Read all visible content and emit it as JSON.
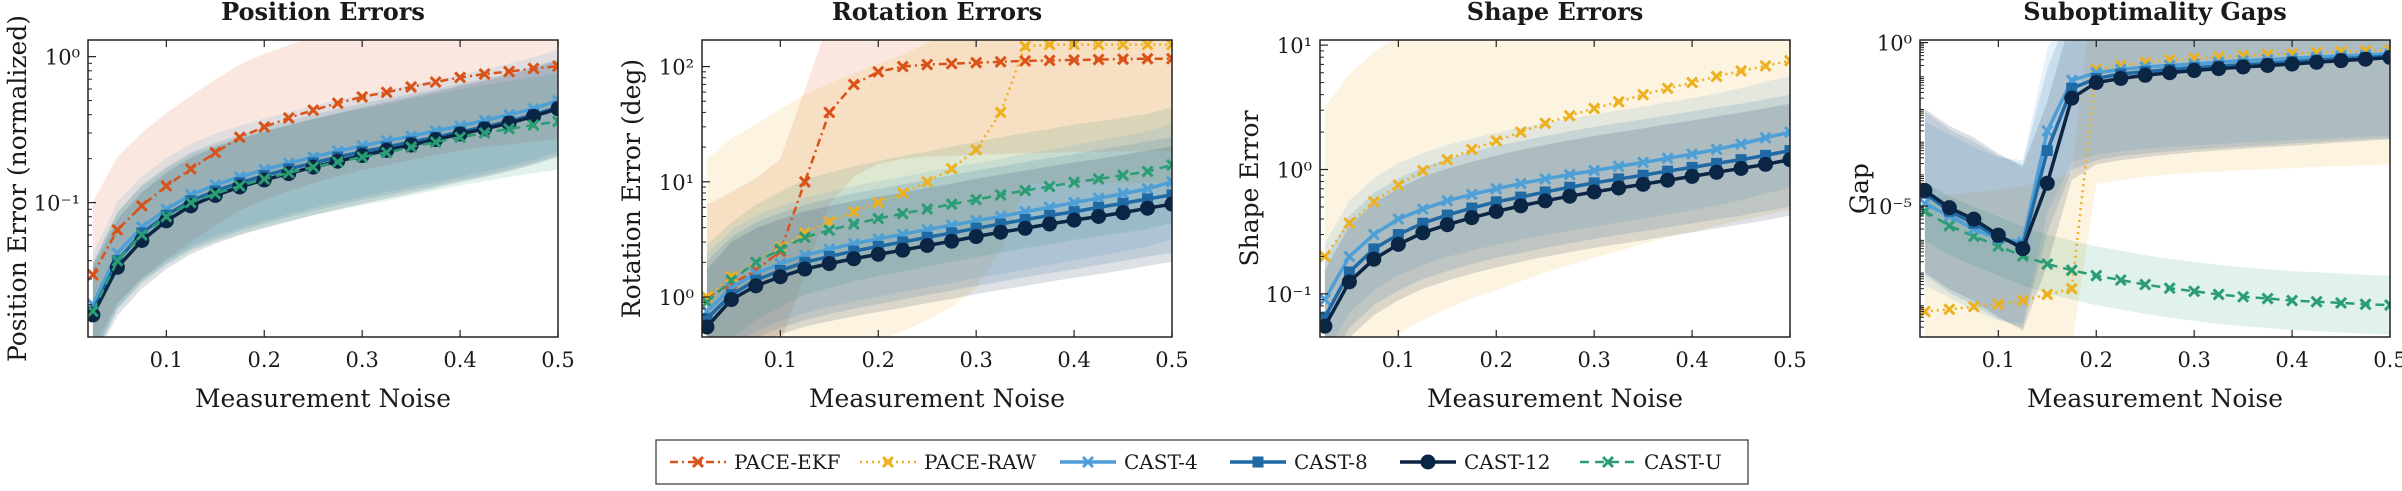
{
  "legend": [
    {
      "name": "PACE-EKF",
      "color": "#d95319",
      "dash": "8,4,2,4",
      "marker": "x",
      "width": 2.5
    },
    {
      "name": "PACE-RAW",
      "color": "#edb120",
      "dash": "2,4",
      "marker": "x",
      "width": 2.5
    },
    {
      "name": "CAST-4",
      "color": "#4d9fd6",
      "dash": "",
      "marker": "x",
      "width": 3.5
    },
    {
      "name": "CAST-8",
      "color": "#1f6aa5",
      "dash": "",
      "marker": "s",
      "width": 3.5
    },
    {
      "name": "CAST-12",
      "color": "#0b2545",
      "dash": "",
      "marker": "o",
      "width": 3.5
    },
    {
      "name": "CAST-U",
      "color": "#2a9d74",
      "dash": "9,6",
      "marker": "x",
      "width": 2.5
    }
  ],
  "chart_data": [
    {
      "type": "line",
      "title": "Position Errors",
      "xlabel": "Measurement Noise",
      "ylabel": "Position Error (normalized)",
      "yscale": "log",
      "xlim": [
        0.02,
        0.5
      ],
      "ylim": [
        0.012,
        1.3
      ],
      "xticks": [
        0.1,
        0.2,
        0.3,
        0.4,
        0.5
      ],
      "xtick_labels": [
        "0.1",
        "0.2",
        "0.3",
        "0.4",
        "0.5"
      ],
      "yticks": [
        0.1,
        1
      ],
      "ytick_labels": [
        "10⁻¹",
        "10⁰"
      ],
      "x": [
        0.025,
        0.05,
        0.075,
        0.1,
        0.125,
        0.15,
        0.175,
        0.2,
        0.225,
        0.25,
        0.275,
        0.3,
        0.325,
        0.35,
        0.375,
        0.4,
        0.425,
        0.45,
        0.475,
        0.5
      ],
      "series": [
        {
          "name": "PACE-EKF",
          "values": [
            0.032,
            0.065,
            0.095,
            0.13,
            0.17,
            0.22,
            0.28,
            0.33,
            0.38,
            0.43,
            0.48,
            0.53,
            0.57,
            0.62,
            0.67,
            0.72,
            0.76,
            0.79,
            0.83,
            0.86
          ],
          "band": 0.5,
          "marker_every": 1
        },
        {
          "name": "CAST-4",
          "values": [
            0.02,
            0.045,
            0.068,
            0.09,
            0.113,
            0.132,
            0.15,
            0.168,
            0.186,
            0.205,
            0.225,
            0.245,
            0.265,
            0.285,
            0.31,
            0.335,
            0.365,
            0.4,
            0.44,
            0.5
          ],
          "band": 0.35,
          "marker_every": 1
        },
        {
          "name": "CAST-8",
          "values": [
            0.018,
            0.04,
            0.062,
            0.082,
            0.103,
            0.12,
            0.137,
            0.153,
            0.17,
            0.187,
            0.205,
            0.223,
            0.24,
            0.26,
            0.28,
            0.305,
            0.33,
            0.36,
            0.4,
            0.45
          ],
          "band": 0.33,
          "marker_every": 1
        },
        {
          "name": "CAST-12",
          "values": [
            0.017,
            0.036,
            0.055,
            0.075,
            0.095,
            0.112,
            0.128,
            0.143,
            0.158,
            0.175,
            0.192,
            0.21,
            0.228,
            0.248,
            0.27,
            0.295,
            0.32,
            0.35,
            0.39,
            0.44
          ],
          "band": 0.33,
          "marker_every": 1
        },
        {
          "name": "CAST-U",
          "values": [
            0.018,
            0.04,
            0.06,
            0.08,
            0.1,
            0.115,
            0.13,
            0.145,
            0.16,
            0.175,
            0.19,
            0.205,
            0.22,
            0.24,
            0.26,
            0.28,
            0.3,
            0.32,
            0.34,
            0.36
          ],
          "band": 0.33,
          "marker_every": 1
        }
      ]
    },
    {
      "type": "line",
      "title": "Rotation Errors",
      "xlabel": "Measurement Noise",
      "ylabel": "Rotation Error (deg)",
      "yscale": "log",
      "xlim": [
        0.02,
        0.5
      ],
      "ylim": [
        0.45,
        170
      ],
      "xticks": [
        0.1,
        0.2,
        0.3,
        0.4,
        0.5
      ],
      "xtick_labels": [
        "0.1",
        "0.2",
        "0.3",
        "0.4",
        "0.5"
      ],
      "yticks": [
        1,
        10,
        100
      ],
      "ytick_labels": [
        "10⁰",
        "10¹",
        "10²"
      ],
      "x": [
        0.025,
        0.05,
        0.075,
        0.1,
        0.125,
        0.15,
        0.175,
        0.2,
        0.225,
        0.25,
        0.275,
        0.3,
        0.325,
        0.35,
        0.375,
        0.4,
        0.425,
        0.45,
        0.475,
        0.5
      ],
      "series": [
        {
          "name": "PACE-EKF",
          "values": [
            1.0,
            1.3,
            1.7,
            2.5,
            10,
            40,
            70,
            90,
            100,
            104,
            106,
            108,
            110,
            112,
            113,
            114,
            115,
            116,
            117,
            117
          ],
          "band": 0.8,
          "marker_every": 1
        },
        {
          "name": "PACE-RAW",
          "values": [
            1.0,
            1.5,
            2.0,
            2.7,
            3.6,
            4.5,
            5.5,
            6.6,
            8.0,
            10,
            13,
            19,
            40,
            150,
            155,
            155,
            155,
            155,
            155,
            155
          ],
          "band": 1.2,
          "marker_every": 1
        },
        {
          "name": "CAST-U",
          "values": [
            0.9,
            1.4,
            2.0,
            2.6,
            3.3,
            3.8,
            4.3,
            4.8,
            5.3,
            5.8,
            6.4,
            7.0,
            7.7,
            8.4,
            9.1,
            9.9,
            10.6,
            11.4,
            12.3,
            14
          ],
          "band": 0.5,
          "marker_every": 1
        },
        {
          "name": "CAST-4",
          "values": [
            0.75,
            1.2,
            1.6,
            1.95,
            2.3,
            2.6,
            2.9,
            3.2,
            3.5,
            3.85,
            4.2,
            4.6,
            5.0,
            5.5,
            6.0,
            6.6,
            7.2,
            7.9,
            8.7,
            10
          ],
          "band": 0.5,
          "marker_every": 1
        },
        {
          "name": "CAST-8",
          "values": [
            0.65,
            1.05,
            1.4,
            1.7,
            2.0,
            2.25,
            2.5,
            2.75,
            3.0,
            3.3,
            3.6,
            3.95,
            4.3,
            4.7,
            5.1,
            5.5,
            6.0,
            6.5,
            7.1,
            7.7
          ],
          "band": 0.5,
          "marker_every": 1
        },
        {
          "name": "CAST-12",
          "values": [
            0.55,
            0.95,
            1.25,
            1.5,
            1.75,
            1.95,
            2.15,
            2.35,
            2.55,
            2.8,
            3.05,
            3.35,
            3.65,
            3.95,
            4.3,
            4.65,
            5.0,
            5.4,
            5.9,
            6.4
          ],
          "band": 0.5,
          "marker_every": 1
        }
      ]
    },
    {
      "type": "line",
      "title": "Shape Errors",
      "xlabel": "Measurement Noise",
      "ylabel": "Shape Error",
      "yscale": "log",
      "xlim": [
        0.02,
        0.5
      ],
      "ylim": [
        0.045,
        11
      ],
      "xticks": [
        0.1,
        0.2,
        0.3,
        0.4,
        0.5
      ],
      "xtick_labels": [
        "0.1",
        "0.2",
        "0.3",
        "0.4",
        "0.5"
      ],
      "yticks": [
        0.1,
        1,
        10
      ],
      "ytick_labels": [
        "10⁻¹",
        "10⁰",
        "10¹"
      ],
      "x": [
        0.025,
        0.05,
        0.075,
        0.1,
        0.125,
        0.15,
        0.175,
        0.2,
        0.225,
        0.25,
        0.275,
        0.3,
        0.325,
        0.35,
        0.375,
        0.4,
        0.425,
        0.45,
        0.475,
        0.5
      ],
      "series": [
        {
          "name": "PACE-RAW",
          "values": [
            0.2,
            0.37,
            0.55,
            0.75,
            0.98,
            1.2,
            1.45,
            1.7,
            2.0,
            2.35,
            2.7,
            3.1,
            3.5,
            4.0,
            4.5,
            5.0,
            5.6,
            6.2,
            6.8,
            7.5
          ],
          "band": 1.2,
          "marker_every": 1
        },
        {
          "name": "CAST-4",
          "values": [
            0.09,
            0.2,
            0.3,
            0.4,
            0.48,
            0.56,
            0.63,
            0.7,
            0.77,
            0.84,
            0.91,
            0.98,
            1.06,
            1.14,
            1.23,
            1.33,
            1.45,
            1.6,
            1.8,
            2.0
          ],
          "band": 0.45,
          "marker_every": 1
        },
        {
          "name": "CAST-8",
          "values": [
            0.065,
            0.15,
            0.23,
            0.3,
            0.37,
            0.43,
            0.49,
            0.55,
            0.6,
            0.66,
            0.72,
            0.78,
            0.84,
            0.9,
            0.97,
            1.04,
            1.12,
            1.2,
            1.3,
            1.42
          ],
          "band": 0.45,
          "marker_every": 1
        },
        {
          "name": "CAST-12",
          "values": [
            0.055,
            0.125,
            0.19,
            0.25,
            0.31,
            0.36,
            0.41,
            0.46,
            0.51,
            0.56,
            0.61,
            0.66,
            0.71,
            0.76,
            0.82,
            0.88,
            0.95,
            1.02,
            1.1,
            1.2
          ],
          "band": 0.45,
          "marker_every": 1
        }
      ]
    },
    {
      "type": "line",
      "title": "Suboptimality Gaps",
      "xlabel": "Measurement Noise",
      "ylabel": "Gap",
      "yscale": "log",
      "xlim": [
        0.02,
        0.5
      ],
      "ylim": [
        1e-09,
        1.2
      ],
      "xticks": [
        0.1,
        0.2,
        0.3,
        0.4,
        0.5
      ],
      "xtick_labels": [
        "0.1",
        "0.2",
        "0.3",
        "0.4",
        "0.5"
      ],
      "yticks": [
        1e-05,
        1
      ],
      "ytick_labels": [
        "10⁻⁵",
        "10⁰"
      ],
      "x": [
        0.025,
        0.05,
        0.075,
        0.1,
        0.125,
        0.15,
        0.175,
        0.2,
        0.225,
        0.25,
        0.275,
        0.3,
        0.325,
        0.35,
        0.375,
        0.4,
        0.425,
        0.45,
        0.475,
        0.5
      ],
      "series": [
        {
          "name": "PACE-RAW",
          "values": [
            6e-09,
            7e-09,
            8.5e-09,
            1e-08,
            1.3e-08,
            2e-08,
            3e-08,
            0.15,
            0.2,
            0.25,
            0.3,
            0.33,
            0.36,
            0.4,
            0.43,
            0.46,
            0.5,
            0.53,
            0.56,
            0.6
          ],
          "band": 3.5,
          "marker_every": 1
        },
        {
          "name": "CAST-U",
          "values": [
            7e-06,
            2.5e-06,
            1.2e-06,
            6e-07,
            3e-07,
            1.7e-07,
            1.1e-07,
            7.5e-08,
            5.5e-08,
            4e-08,
            3.1e-08,
            2.5e-08,
            2e-08,
            1.7e-08,
            1.5e-08,
            1.3e-08,
            1.2e-08,
            1.1e-08,
            1e-08,
            9.5e-09
          ],
          "band": 0.9,
          "marker_every": 1
        },
        {
          "name": "CAST-4",
          "values": [
            1.2e-05,
            5e-06,
            2e-06,
            1e-06,
            8e-07,
            0.002,
            0.07,
            0.12,
            0.15,
            0.18,
            0.2,
            0.22,
            0.25,
            0.28,
            0.3,
            0.33,
            0.36,
            0.39,
            0.42,
            0.45
          ],
          "band": 2.5,
          "marker_every": 1
        },
        {
          "name": "CAST-8",
          "values": [
            2.5e-05,
            7e-06,
            3e-06,
            1.1e-06,
            6e-07,
            0.0005,
            0.04,
            0.08,
            0.11,
            0.13,
            0.15,
            0.17,
            0.19,
            0.21,
            0.23,
            0.26,
            0.29,
            0.32,
            0.35,
            0.38
          ],
          "band": 2.5,
          "marker_every": 1
        },
        {
          "name": "CAST-12",
          "values": [
            3e-05,
            9e-06,
            4e-06,
            1.3e-06,
            5e-07,
            5e-05,
            0.02,
            0.06,
            0.08,
            0.1,
            0.12,
            0.14,
            0.16,
            0.18,
            0.2,
            0.22,
            0.25,
            0.28,
            0.31,
            0.35
          ],
          "band": 2.5,
          "marker_every": 1
        }
      ]
    }
  ]
}
